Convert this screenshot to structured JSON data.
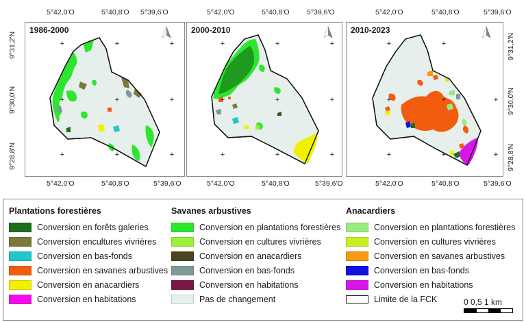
{
  "axes": {
    "top": [
      "5°42,0'O",
      "5°40,8'O",
      "5°39,6'O"
    ],
    "bottom": [
      "5°42,0'O",
      "5°40,8'O",
      "5°39,6'O"
    ],
    "left": [
      "9°31,2'N",
      "9°30,0'N",
      "9°28,8'N"
    ],
    "right": [
      "9°31,2'N",
      "9°30,0'N",
      "9°28,8'N"
    ]
  },
  "panels": [
    {
      "period": "1986-2000"
    },
    {
      "period": "2000-2010"
    },
    {
      "period": "2010-2023"
    }
  ],
  "north_symbol": "north-arrow",
  "legend": {
    "groups": [
      {
        "title": "Plantations forestières",
        "items": [
          {
            "label": "Conversion en forêts galeries",
            "color": "#1e6e1e"
          },
          {
            "label": "Conversion encultures vivrières",
            "color": "#7a7a3a"
          },
          {
            "label": "Conversion en bas-fonds",
            "color": "#22c7c7"
          },
          {
            "label": "Conversion en savanes arbustives",
            "color": "#f25c0f"
          },
          {
            "label": "Conversion en anacardiers",
            "color": "#f0f000"
          },
          {
            "label": "Conversion en habitations",
            "color": "#f20de8"
          }
        ]
      },
      {
        "title": "Savanes arbustives",
        "items": [
          {
            "label": "Conversion en plantations forestières",
            "color": "#2ee62e"
          },
          {
            "label": "Conversion en cultures vivrières",
            "color": "#9cf03a"
          },
          {
            "label": "Conversion en anacardiers",
            "color": "#4a4520"
          },
          {
            "label": "Conversion en bas-fonds",
            "color": "#7e9a96"
          },
          {
            "label": "Conversion en habitations",
            "color": "#7a1545"
          },
          {
            "label": "Pas de changement",
            "color": "#e6efec"
          }
        ]
      },
      {
        "title": "Anacardiers",
        "items": [
          {
            "label": "Conversion en plantations forestières",
            "color": "#96ec7e"
          },
          {
            "label": "Conversion en cultures vivrières",
            "color": "#c8f020"
          },
          {
            "label": "Conversion en savanes arbustives",
            "color": "#f59a12"
          },
          {
            "label": "Conversion en bas-fonds",
            "color": "#1010e0"
          },
          {
            "label": "Conversion en habitations",
            "color": "#d716e6"
          },
          {
            "label": "Limite de la FCK",
            "color": "outline"
          }
        ]
      }
    ]
  },
  "scale": {
    "label": "0 0,5 1 km"
  }
}
